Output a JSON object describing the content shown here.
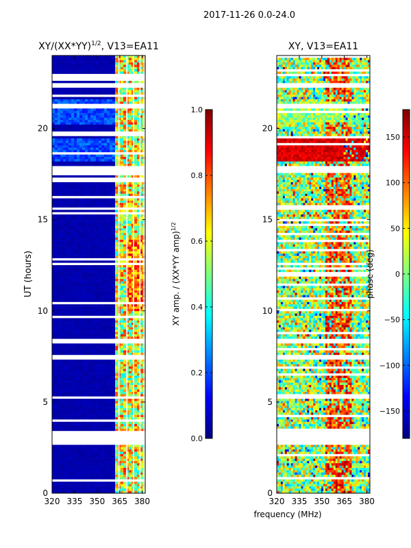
{
  "chart_data": [
    {
      "type": "heatmap",
      "suptitle": "2017-11-26 0.0-24.0",
      "title": "XY/(XX*YY)",
      "title_exp": "1/2",
      "title_suffix": ", V13=EA11",
      "xlabel": "",
      "ylabel": "UT (hours)",
      "xlim": [
        320,
        382
      ],
      "ylim": [
        0,
        24
      ],
      "x_ticks": [
        320,
        335,
        350,
        365,
        380
      ],
      "y_ticks": [
        0,
        5,
        10,
        15,
        20
      ],
      "colorbar": {
        "label": "XY amp. / (XX*YY amp)",
        "label_exp": "1/2",
        "range": [
          0.0,
          1.0
        ],
        "ticks": [
          "0.0",
          "0.2",
          "0.4",
          "0.6",
          "0.8",
          "1.0"
        ]
      },
      "colormap": [
        "#00007f",
        "#0000ff",
        "#007fff",
        "#00ffff",
        "#7fff7f",
        "#ffff00",
        "#ff7f00",
        "#ff0000",
        "#7f0000"
      ],
      "data_gaps_hours": [
        [
          3.3,
          3.45
        ],
        [
          2.65,
          3.25
        ],
        [
          7.3,
          7.6
        ],
        [
          8.2,
          8.5
        ],
        [
          9.6,
          9.75
        ],
        [
          15.5,
          15.65
        ],
        [
          17.6,
          17.9
        ],
        [
          18.6,
          18.75
        ],
        [
          19.6,
          19.8
        ],
        [
          21.1,
          21.3
        ],
        [
          22.2,
          22.45
        ],
        [
          22.8,
          22.95
        ]
      ],
      "rfi_channel_mhz": [
        364.5,
        369.8,
        374.2,
        378.5,
        381.2
      ],
      "elevated_band_mhz": [
        362,
        382
      ],
      "elevated_level_range": [
        0.35,
        0.85
      ],
      "base_level": 0.03
    },
    {
      "type": "heatmap",
      "title": "XY, V13=EA11",
      "xlabel": "frequency (MHz)",
      "ylabel": "",
      "xlim": [
        320,
        382
      ],
      "ylim": [
        0,
        24
      ],
      "x_ticks": [
        320,
        335,
        350,
        365,
        380
      ],
      "y_ticks": [
        0,
        5,
        10,
        15,
        20
      ],
      "colorbar": {
        "label": "phase (deg)",
        "range": [
          -180,
          180
        ],
        "ticks": [
          "−150",
          "−100",
          "−50",
          "0",
          "50",
          "100",
          "150"
        ]
      },
      "colormap": [
        "#00007f",
        "#0000ff",
        "#007fff",
        "#00ffff",
        "#7fff7f",
        "#ffff00",
        "#ff7f00",
        "#ff0000",
        "#7f0000"
      ],
      "data_gaps_hours": [
        [
          2.65,
          3.3
        ],
        [
          3.3,
          3.45
        ],
        [
          7.3,
          7.6
        ],
        [
          8.2,
          8.5
        ],
        [
          15.5,
          15.65
        ],
        [
          17.6,
          17.9
        ],
        [
          21.1,
          21.3
        ],
        [
          22.2,
          22.45
        ]
      ],
      "phase_wrap_mhz": [
        352,
        370
      ],
      "coherent_phase_hours": [
        [
          18.2,
          19.4
        ],
        [
          20.3,
          21.5
        ]
      ]
    }
  ]
}
